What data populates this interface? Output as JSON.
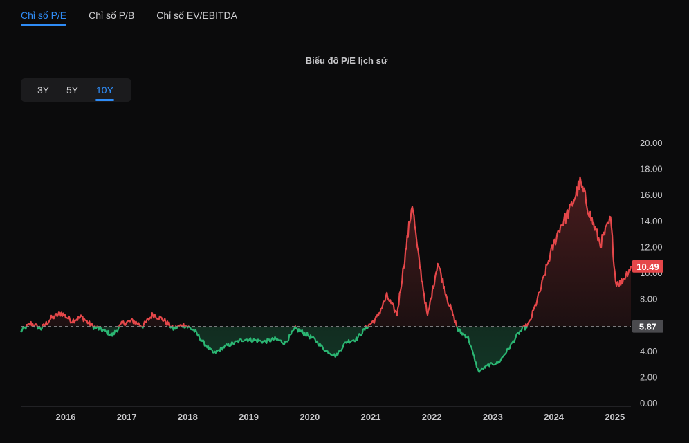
{
  "tabs": [
    {
      "label": "Chỉ số P/E",
      "active": true
    },
    {
      "label": "Chỉ số P/B",
      "active": false
    },
    {
      "label": "Chỉ số EV/EBITDA",
      "active": false
    }
  ],
  "range_buttons": [
    {
      "label": "3Y",
      "active": false
    },
    {
      "label": "5Y",
      "active": false
    },
    {
      "label": "10Y",
      "active": true
    }
  ],
  "colors": {
    "accent": "#2f8cf6",
    "above": "#e5474a",
    "below": "#2bb673",
    "baseline_badge": "#4a4a4e",
    "current_badge": "#e5474a"
  },
  "chart_data": {
    "type": "line",
    "title": "Biểu đồ P/E lịch sử",
    "y_axis": {
      "min": 0,
      "max": 20,
      "ticks": [
        "0.00",
        "2.00",
        "4.00",
        "6.00",
        "8.00",
        "10.00",
        "12.00",
        "14.00",
        "16.00",
        "18.00",
        "20.00"
      ],
      "position": "right"
    },
    "x_axis": {
      "ticks": [
        "2016",
        "2017",
        "2018",
        "2019",
        "2020",
        "2021",
        "2022",
        "2023",
        "2024",
        "2025"
      ]
    },
    "baseline": {
      "value": 5.87,
      "label": "5.87"
    },
    "current": {
      "value": 10.49,
      "label": "10.49"
    },
    "grid": false,
    "series": [
      {
        "x": [
          "2015-05",
          "2015-07",
          "2015-09",
          "2015-11",
          "2016-01",
          "2016-03",
          "2016-05",
          "2016-07",
          "2016-09",
          "2016-11",
          "2017-01",
          "2017-03",
          "2017-05",
          "2017-07",
          "2017-09",
          "2017-11",
          "2018-01",
          "2018-03",
          "2018-05",
          "2018-07",
          "2018-09",
          "2018-11",
          "2019-01",
          "2019-03",
          "2019-05",
          "2019-07",
          "2019-09",
          "2019-11",
          "2020-01",
          "2020-03",
          "2020-05",
          "2020-07",
          "2020-09",
          "2020-11",
          "2021-01",
          "2021-03",
          "2021-05",
          "2021-07",
          "2021-09",
          "2021-10",
          "2021-11",
          "2022-01",
          "2022-03",
          "2022-05",
          "2022-07",
          "2022-09",
          "2022-11",
          "2023-01",
          "2023-03",
          "2023-05",
          "2023-07",
          "2023-09",
          "2023-11",
          "2024-01",
          "2024-03",
          "2024-05",
          "2024-07",
          "2024-08",
          "2024-09",
          "2024-11",
          "2025-01",
          "2025-02",
          "2025-03",
          "2025-05"
        ],
        "values": [
          5.5,
          6.1,
          5.7,
          6.5,
          6.9,
          6.3,
          6.6,
          5.9,
          5.6,
          5.2,
          6.1,
          6.3,
          5.9,
          6.8,
          6.4,
          5.7,
          6.0,
          5.6,
          4.6,
          3.8,
          4.3,
          4.6,
          4.9,
          4.8,
          4.7,
          4.9,
          4.6,
          5.7,
          5.3,
          4.8,
          4.0,
          3.6,
          4.7,
          4.9,
          5.8,
          6.5,
          8.2,
          6.8,
          12.5,
          15.4,
          11.8,
          6.6,
          10.8,
          7.9,
          5.6,
          5.0,
          2.4,
          2.9,
          3.1,
          4.2,
          5.4,
          6.1,
          8.4,
          11.2,
          13.5,
          14.8,
          16.9,
          15.8,
          14.4,
          12.2,
          14.1,
          9.3,
          9.2,
          10.49
        ]
      }
    ]
  }
}
